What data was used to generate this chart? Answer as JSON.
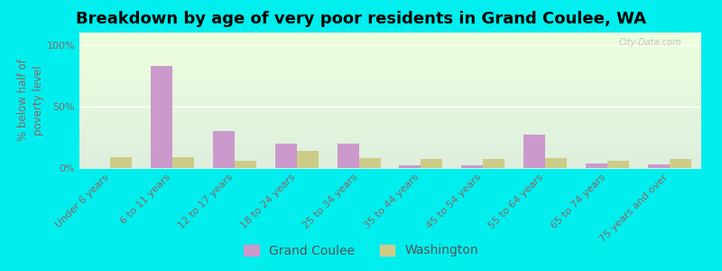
{
  "title": "Breakdown by age of very poor residents in Grand Coulee, WA",
  "ylabel": "% below half of\npoverty level",
  "categories": [
    "Under 6 years",
    "6 to 11 years",
    "12 to 17 years",
    "18 to 24 years",
    "25 to 34 years",
    "35 to 44 years",
    "45 to 54 years",
    "55 to 64 years",
    "65 to 74 years",
    "75 years and over"
  ],
  "grand_coulee": [
    0.0,
    83.0,
    30.0,
    20.0,
    20.0,
    2.0,
    2.0,
    27.0,
    4.0,
    3.0
  ],
  "washington": [
    9.0,
    9.0,
    6.0,
    14.0,
    8.0,
    7.0,
    7.0,
    8.0,
    6.0,
    7.0
  ],
  "grand_coulee_color": "#cc99cc",
  "washington_color": "#cccc88",
  "bg_top": "#ddeedd",
  "bg_bottom": "#eeffdd",
  "outer_bg": "#00eeee",
  "yticks": [
    0,
    50,
    100
  ],
  "ylim": [
    0,
    110
  ],
  "bar_width": 0.35,
  "title_fontsize": 13,
  "axis_label_fontsize": 8.5,
  "tick_fontsize": 8,
  "legend_fontsize": 10,
  "watermark": "City-Data.com"
}
